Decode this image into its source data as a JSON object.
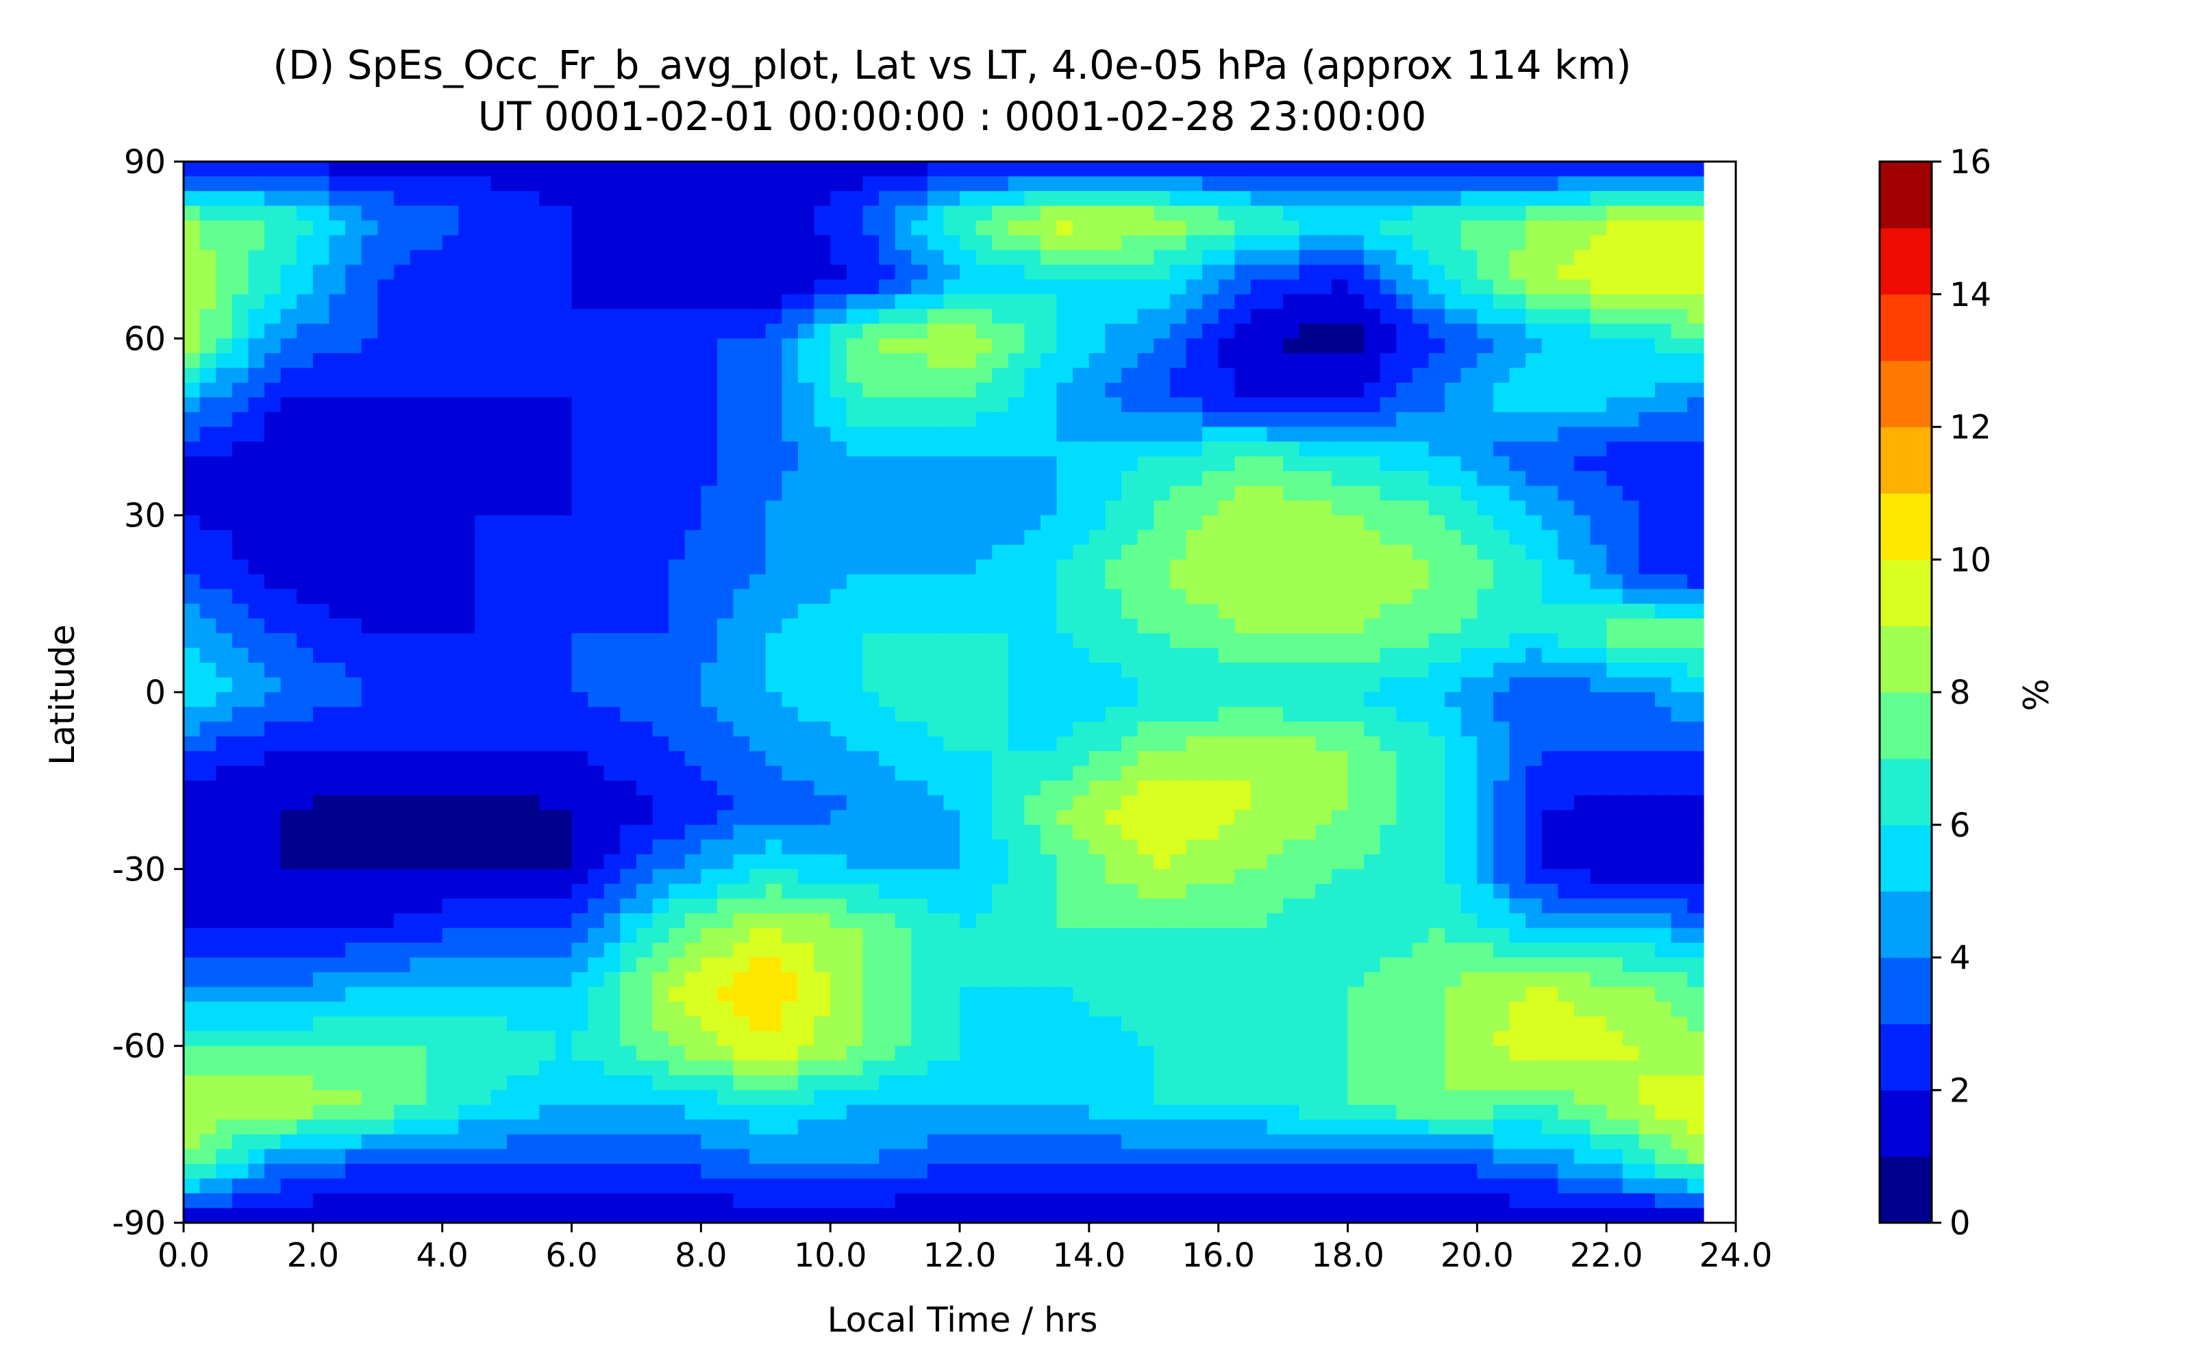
{
  "chart_data": {
    "type": "heatmap",
    "title": "(D) SpEs_Occ_Fr_b_avg_plot, Lat vs LT, 4.0e-05 hPa (approx 114 km)",
    "subtitle": "UT 0001-02-01 00:00:00 : 0001-02-28 23:00:00",
    "xlabel": "Local Time / hrs",
    "ylabel": "Latitude",
    "xlim": [
      0,
      24
    ],
    "ylim": [
      -90,
      90
    ],
    "x_ticks": [
      0,
      2,
      4,
      6,
      8,
      10,
      12,
      14,
      16,
      18,
      20,
      22,
      24
    ],
    "x_tick_labels": [
      "0.0",
      "2.0",
      "4.0",
      "6.0",
      "8.0",
      "10.0",
      "12.0",
      "14.0",
      "16.0",
      "18.0",
      "20.0",
      "22.0",
      "24.0"
    ],
    "y_ticks": [
      90,
      60,
      30,
      0,
      -30,
      -60,
      -90
    ],
    "y_tick_labels": [
      "90",
      "60",
      "30",
      "0",
      "-30",
      "-60",
      "-90"
    ],
    "x_data_max": 23.5,
    "colorbar": {
      "label": "%",
      "ticks": [
        0,
        2,
        4,
        6,
        8,
        10,
        12,
        14,
        16
      ],
      "tick_labels": [
        "0",
        "2",
        "4",
        "6",
        "8",
        "10",
        "12",
        "14",
        "16"
      ],
      "levels": [
        0,
        1,
        2,
        3,
        4,
        5,
        6,
        7,
        8,
        9,
        10,
        11,
        12,
        13,
        14,
        15,
        16
      ],
      "colors": [
        "#00008f",
        "#0000d8",
        "#0022ff",
        "#0060ff",
        "#00a0ff",
        "#00ddff",
        "#20f0d0",
        "#60ff90",
        "#a0ff50",
        "#d8ff20",
        "#ffe800",
        "#ffb000",
        "#ff7800",
        "#ff4000",
        "#f00c00",
        "#a00000"
      ]
    },
    "x": [
      0,
      1.5,
      3,
      4.5,
      6,
      7.5,
      9,
      10.5,
      12,
      13.5,
      15,
      16.5,
      18,
      19.5,
      21,
      22.5,
      23.5
    ],
    "y": [
      90,
      80,
      70,
      60,
      50,
      40,
      30,
      20,
      10,
      0,
      -10,
      -20,
      -30,
      -40,
      -50,
      -60,
      -70,
      -80,
      -90
    ],
    "z": [
      [
        1.5,
        1.5,
        1.5,
        1.5,
        1.5,
        1.5,
        1.5,
        1.5,
        1.5,
        1.5,
        1.5,
        1.5,
        1.5,
        1.5,
        1.5,
        1.5,
        1.5
      ],
      [
        8,
        7,
        4,
        3,
        2,
        1,
        1,
        3,
        7,
        9.5,
        9,
        7,
        6,
        7,
        8,
        9.5,
        9
      ],
      [
        9,
        6,
        3,
        2,
        2,
        1,
        1,
        2,
        5,
        6,
        6,
        3,
        2,
        6,
        9,
        10,
        10
      ],
      [
        9,
        4,
        3,
        2,
        2,
        3,
        3,
        8,
        9,
        6,
        4,
        1,
        0.5,
        3,
        5,
        6,
        7
      ],
      [
        5,
        2,
        2,
        2,
        2,
        2.5,
        3.5,
        7,
        7,
        5,
        3,
        2,
        2,
        4,
        6,
        5,
        4
      ],
      [
        2,
        1.5,
        1.5,
        1.5,
        2,
        2.5,
        3.5,
        5,
        5,
        5,
        6,
        7,
        6,
        5,
        3,
        2.5,
        2.5
      ],
      [
        2,
        1.5,
        1.5,
        2,
        2,
        2.5,
        4,
        5,
        4,
        5,
        7,
        9,
        8,
        7,
        5,
        3,
        2
      ],
      [
        3,
        1.5,
        1,
        2,
        2,
        3,
        4,
        5,
        5,
        6,
        8,
        9,
        9,
        8,
        6,
        3,
        2
      ],
      [
        5,
        3,
        2,
        2,
        3,
        3,
        5,
        6,
        6,
        6,
        7,
        8,
        8,
        7,
        6,
        8,
        8
      ],
      [
        6,
        4,
        3,
        3,
        3,
        3.5,
        5,
        6,
        7,
        5,
        6,
        6,
        6,
        5,
        3,
        4,
        5
      ],
      [
        3,
        2,
        2,
        2,
        2,
        3,
        4,
        5,
        6,
        6,
        8,
        9,
        8,
        6,
        3,
        3,
        3
      ],
      [
        1,
        1,
        0.5,
        0.5,
        1,
        2,
        3.5,
        4,
        5,
        8,
        10,
        9,
        8,
        6,
        2,
        1.5,
        1.5
      ],
      [
        1.5,
        1,
        1,
        1,
        1,
        4,
        6,
        5,
        5,
        7,
        9,
        8,
        7,
        6,
        2,
        1,
        1
      ],
      [
        2,
        2,
        2,
        3,
        3,
        7,
        9,
        8,
        6,
        7,
        7,
        7,
        6,
        7,
        5,
        5,
        4
      ],
      [
        4,
        4,
        5,
        5,
        5,
        9,
        11,
        8,
        6,
        6,
        7,
        6,
        7,
        8,
        9,
        8,
        7
      ],
      [
        7,
        7,
        7,
        7,
        6,
        8,
        10,
        8,
        6,
        5,
        6,
        7,
        7,
        8,
        10,
        9,
        8
      ],
      [
        9,
        9,
        8,
        6,
        5,
        5,
        6,
        5,
        5,
        5,
        6,
        6,
        7,
        8,
        7,
        9,
        10
      ],
      [
        8,
        4,
        3,
        3,
        3,
        3,
        4,
        4,
        3,
        3,
        3,
        3,
        3,
        3,
        4,
        6,
        8
      ],
      [
        1,
        1,
        1,
        1,
        1,
        1,
        1,
        1,
        1,
        1,
        1,
        1,
        1,
        1,
        1,
        1,
        1
      ]
    ]
  }
}
